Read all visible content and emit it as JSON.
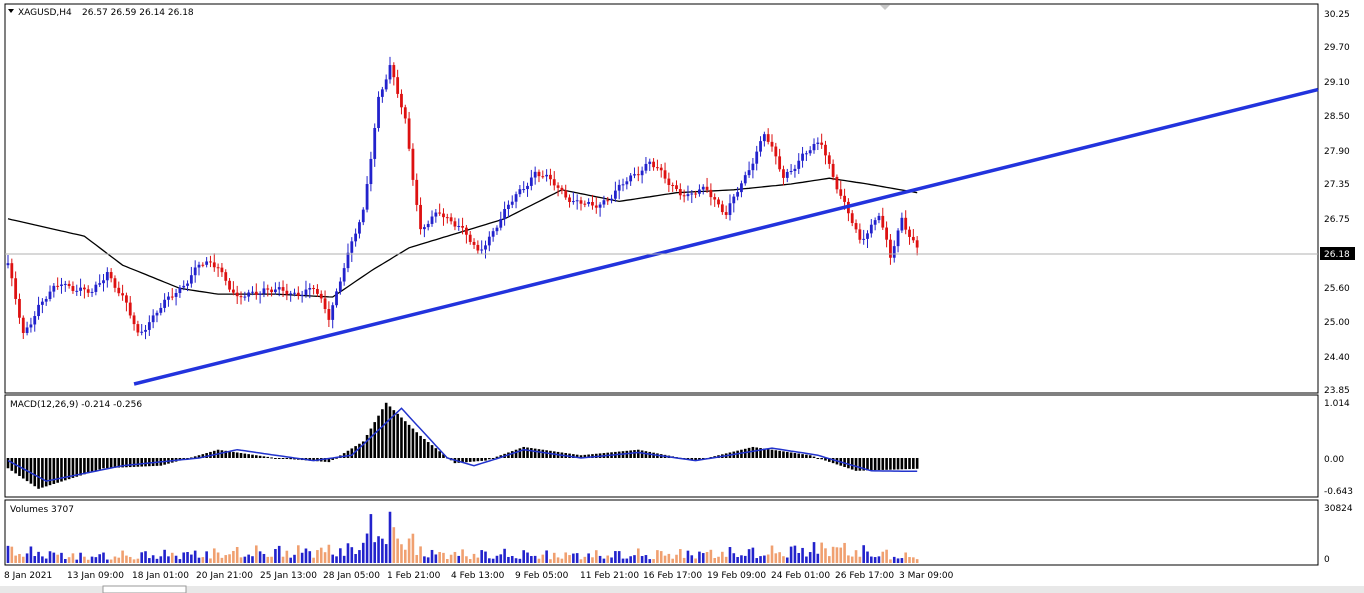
{
  "window": {
    "symbol_title": "XAGUSD,H4",
    "ohlc": "26.57 26.59 26.14 26.18",
    "current_price": "26.18"
  },
  "panels": {
    "price": {
      "y_ticks": [
        "30.25",
        "29.70",
        "29.10",
        "28.50",
        "27.90",
        "27.35",
        "26.75",
        "26.18",
        "25.60",
        "25.00",
        "24.40",
        "23.85"
      ]
    },
    "macd": {
      "label": "MACD(12,26,9) -0.214 -0.256",
      "y_ticks": [
        "1.014",
        "0.00",
        "-0.643"
      ]
    },
    "volume": {
      "label": "Volumes 3707",
      "y_ticks": [
        "30824",
        "0"
      ]
    }
  },
  "x_ticks": [
    "8 Jan 2021",
    "13 Jan 09:00",
    "18 Jan 01:00",
    "20 Jan 21:00",
    "25 Jan 13:00",
    "28 Jan 05:00",
    "1 Feb 21:00",
    "4 Feb 13:00",
    "9 Feb 05:00",
    "11 Feb 21:00",
    "16 Feb 17:00",
    "19 Feb 09:00",
    "24 Feb 01:00",
    "26 Feb 17:00",
    "3 Mar 09:00"
  ],
  "colors": {
    "bull": "#2222cc",
    "bear": "#dd1111",
    "ma": "#000000",
    "trendline": "#2233dd",
    "macd_signal": "#2233cc",
    "vol_up": "#2222cc",
    "vol_down": "#f0a070"
  },
  "chart_data": {
    "type": "candlestick",
    "ylim": [
      23.85,
      30.25
    ],
    "anchors": [
      {
        "i": 0,
        "p": 25.9
      },
      {
        "i": 4,
        "p": 24.7
      },
      {
        "i": 8,
        "p": 25.2
      },
      {
        "i": 14,
        "p": 25.6
      },
      {
        "i": 22,
        "p": 25.4
      },
      {
        "i": 26,
        "p": 25.8
      },
      {
        "i": 31,
        "p": 25.2
      },
      {
        "i": 34,
        "p": 24.7
      },
      {
        "i": 39,
        "p": 25.1
      },
      {
        "i": 45,
        "p": 25.5
      },
      {
        "i": 50,
        "p": 25.9
      },
      {
        "i": 55,
        "p": 25.9
      },
      {
        "i": 60,
        "p": 25.3
      },
      {
        "i": 67,
        "p": 25.5
      },
      {
        "i": 74,
        "p": 25.4
      },
      {
        "i": 80,
        "p": 25.5
      },
      {
        "i": 84,
        "p": 25.0
      },
      {
        "i": 88,
        "p": 25.9
      },
      {
        "i": 93,
        "p": 26.8
      },
      {
        "i": 97,
        "p": 28.8
      },
      {
        "i": 100,
        "p": 29.3
      },
      {
        "i": 104,
        "p": 28.4
      },
      {
        "i": 108,
        "p": 26.5
      },
      {
        "i": 113,
        "p": 26.8
      },
      {
        "i": 118,
        "p": 26.6
      },
      {
        "i": 123,
        "p": 26.1
      },
      {
        "i": 128,
        "p": 26.6
      },
      {
        "i": 133,
        "p": 27.1
      },
      {
        "i": 138,
        "p": 27.5
      },
      {
        "i": 143,
        "p": 27.3
      },
      {
        "i": 148,
        "p": 27.0
      },
      {
        "i": 153,
        "p": 26.9
      },
      {
        "i": 158,
        "p": 27.1
      },
      {
        "i": 163,
        "p": 27.4
      },
      {
        "i": 168,
        "p": 27.7
      },
      {
        "i": 173,
        "p": 27.3
      },
      {
        "i": 178,
        "p": 27.1
      },
      {
        "i": 183,
        "p": 27.2
      },
      {
        "i": 188,
        "p": 26.8
      },
      {
        "i": 193,
        "p": 27.4
      },
      {
        "i": 198,
        "p": 28.2
      },
      {
        "i": 203,
        "p": 27.4
      },
      {
        "i": 208,
        "p": 27.8
      },
      {
        "i": 213,
        "p": 28.0
      },
      {
        "i": 218,
        "p": 27.1
      },
      {
        "i": 223,
        "p": 26.3
      },
      {
        "i": 228,
        "p": 26.8
      },
      {
        "i": 231,
        "p": 26.0
      },
      {
        "i": 234,
        "p": 26.7
      },
      {
        "i": 238,
        "p": 26.2
      }
    ],
    "ma_points": [
      {
        "i": 0,
        "p": 26.7
      },
      {
        "i": 20,
        "p": 26.4
      },
      {
        "i": 30,
        "p": 25.9
      },
      {
        "i": 45,
        "p": 25.5
      },
      {
        "i": 55,
        "p": 25.4
      },
      {
        "i": 70,
        "p": 25.4
      },
      {
        "i": 85,
        "p": 25.35
      },
      {
        "i": 95,
        "p": 25.8
      },
      {
        "i": 105,
        "p": 26.2
      },
      {
        "i": 115,
        "p": 26.4
      },
      {
        "i": 130,
        "p": 26.7
      },
      {
        "i": 145,
        "p": 27.2
      },
      {
        "i": 160,
        "p": 27.0
      },
      {
        "i": 175,
        "p": 27.15
      },
      {
        "i": 190,
        "p": 27.2
      },
      {
        "i": 205,
        "p": 27.3
      },
      {
        "i": 215,
        "p": 27.4
      },
      {
        "i": 225,
        "p": 27.3
      },
      {
        "i": 238,
        "p": 27.15
      }
    ],
    "trendline": {
      "from": {
        "i": 33,
        "p": 23.85
      },
      "to": {
        "i": 345,
        "p": 28.93
      }
    },
    "macd_ylim": [
      -0.643,
      1.014
    ],
    "macd_anchors": [
      {
        "i": 0,
        "p": -0.2
      },
      {
        "i": 8,
        "p": -0.6
      },
      {
        "i": 25,
        "p": -0.2
      },
      {
        "i": 40,
        "p": -0.15
      },
      {
        "i": 55,
        "p": 0.15
      },
      {
        "i": 70,
        "p": 0.0
      },
      {
        "i": 84,
        "p": -0.08
      },
      {
        "i": 93,
        "p": 0.3
      },
      {
        "i": 99,
        "p": 1.0
      },
      {
        "i": 108,
        "p": 0.4
      },
      {
        "i": 117,
        "p": -0.1
      },
      {
        "i": 125,
        "p": -0.05
      },
      {
        "i": 135,
        "p": 0.2
      },
      {
        "i": 150,
        "p": 0.05
      },
      {
        "i": 165,
        "p": 0.15
      },
      {
        "i": 180,
        "p": -0.05
      },
      {
        "i": 195,
        "p": 0.2
      },
      {
        "i": 210,
        "p": 0.05
      },
      {
        "i": 222,
        "p": -0.25
      },
      {
        "i": 238,
        "p": -0.21
      }
    ],
    "signal_anchors": [
      {
        "i": 0,
        "p": -0.05
      },
      {
        "i": 10,
        "p": -0.45
      },
      {
        "i": 30,
        "p": -0.15
      },
      {
        "i": 50,
        "p": 0.0
      },
      {
        "i": 60,
        "p": 0.15
      },
      {
        "i": 80,
        "p": -0.05
      },
      {
        "i": 90,
        "p": 0.05
      },
      {
        "i": 103,
        "p": 0.9
      },
      {
        "i": 115,
        "p": 0.0
      },
      {
        "i": 122,
        "p": -0.15
      },
      {
        "i": 135,
        "p": 0.15
      },
      {
        "i": 150,
        "p": 0.0
      },
      {
        "i": 165,
        "p": 0.1
      },
      {
        "i": 180,
        "p": -0.05
      },
      {
        "i": 200,
        "p": 0.18
      },
      {
        "i": 212,
        "p": 0.05
      },
      {
        "i": 226,
        "p": -0.25
      },
      {
        "i": 238,
        "p": -0.26
      }
    ],
    "volume_ylim": [
      0,
      30824
    ],
    "volume_anchors": [
      {
        "i": 0,
        "v": 9000
      },
      {
        "i": 20,
        "v": 5000
      },
      {
        "i": 50,
        "v": 7000
      },
      {
        "i": 90,
        "v": 10000
      },
      {
        "i": 97,
        "v": 28000
      },
      {
        "i": 102,
        "v": 22000
      },
      {
        "i": 110,
        "v": 7000
      },
      {
        "i": 150,
        "v": 6000
      },
      {
        "i": 200,
        "v": 8000
      },
      {
        "i": 215,
        "v": 12000
      },
      {
        "i": 225,
        "v": 8000
      },
      {
        "i": 238,
        "v": 4000
      }
    ],
    "bar_count": 239
  }
}
